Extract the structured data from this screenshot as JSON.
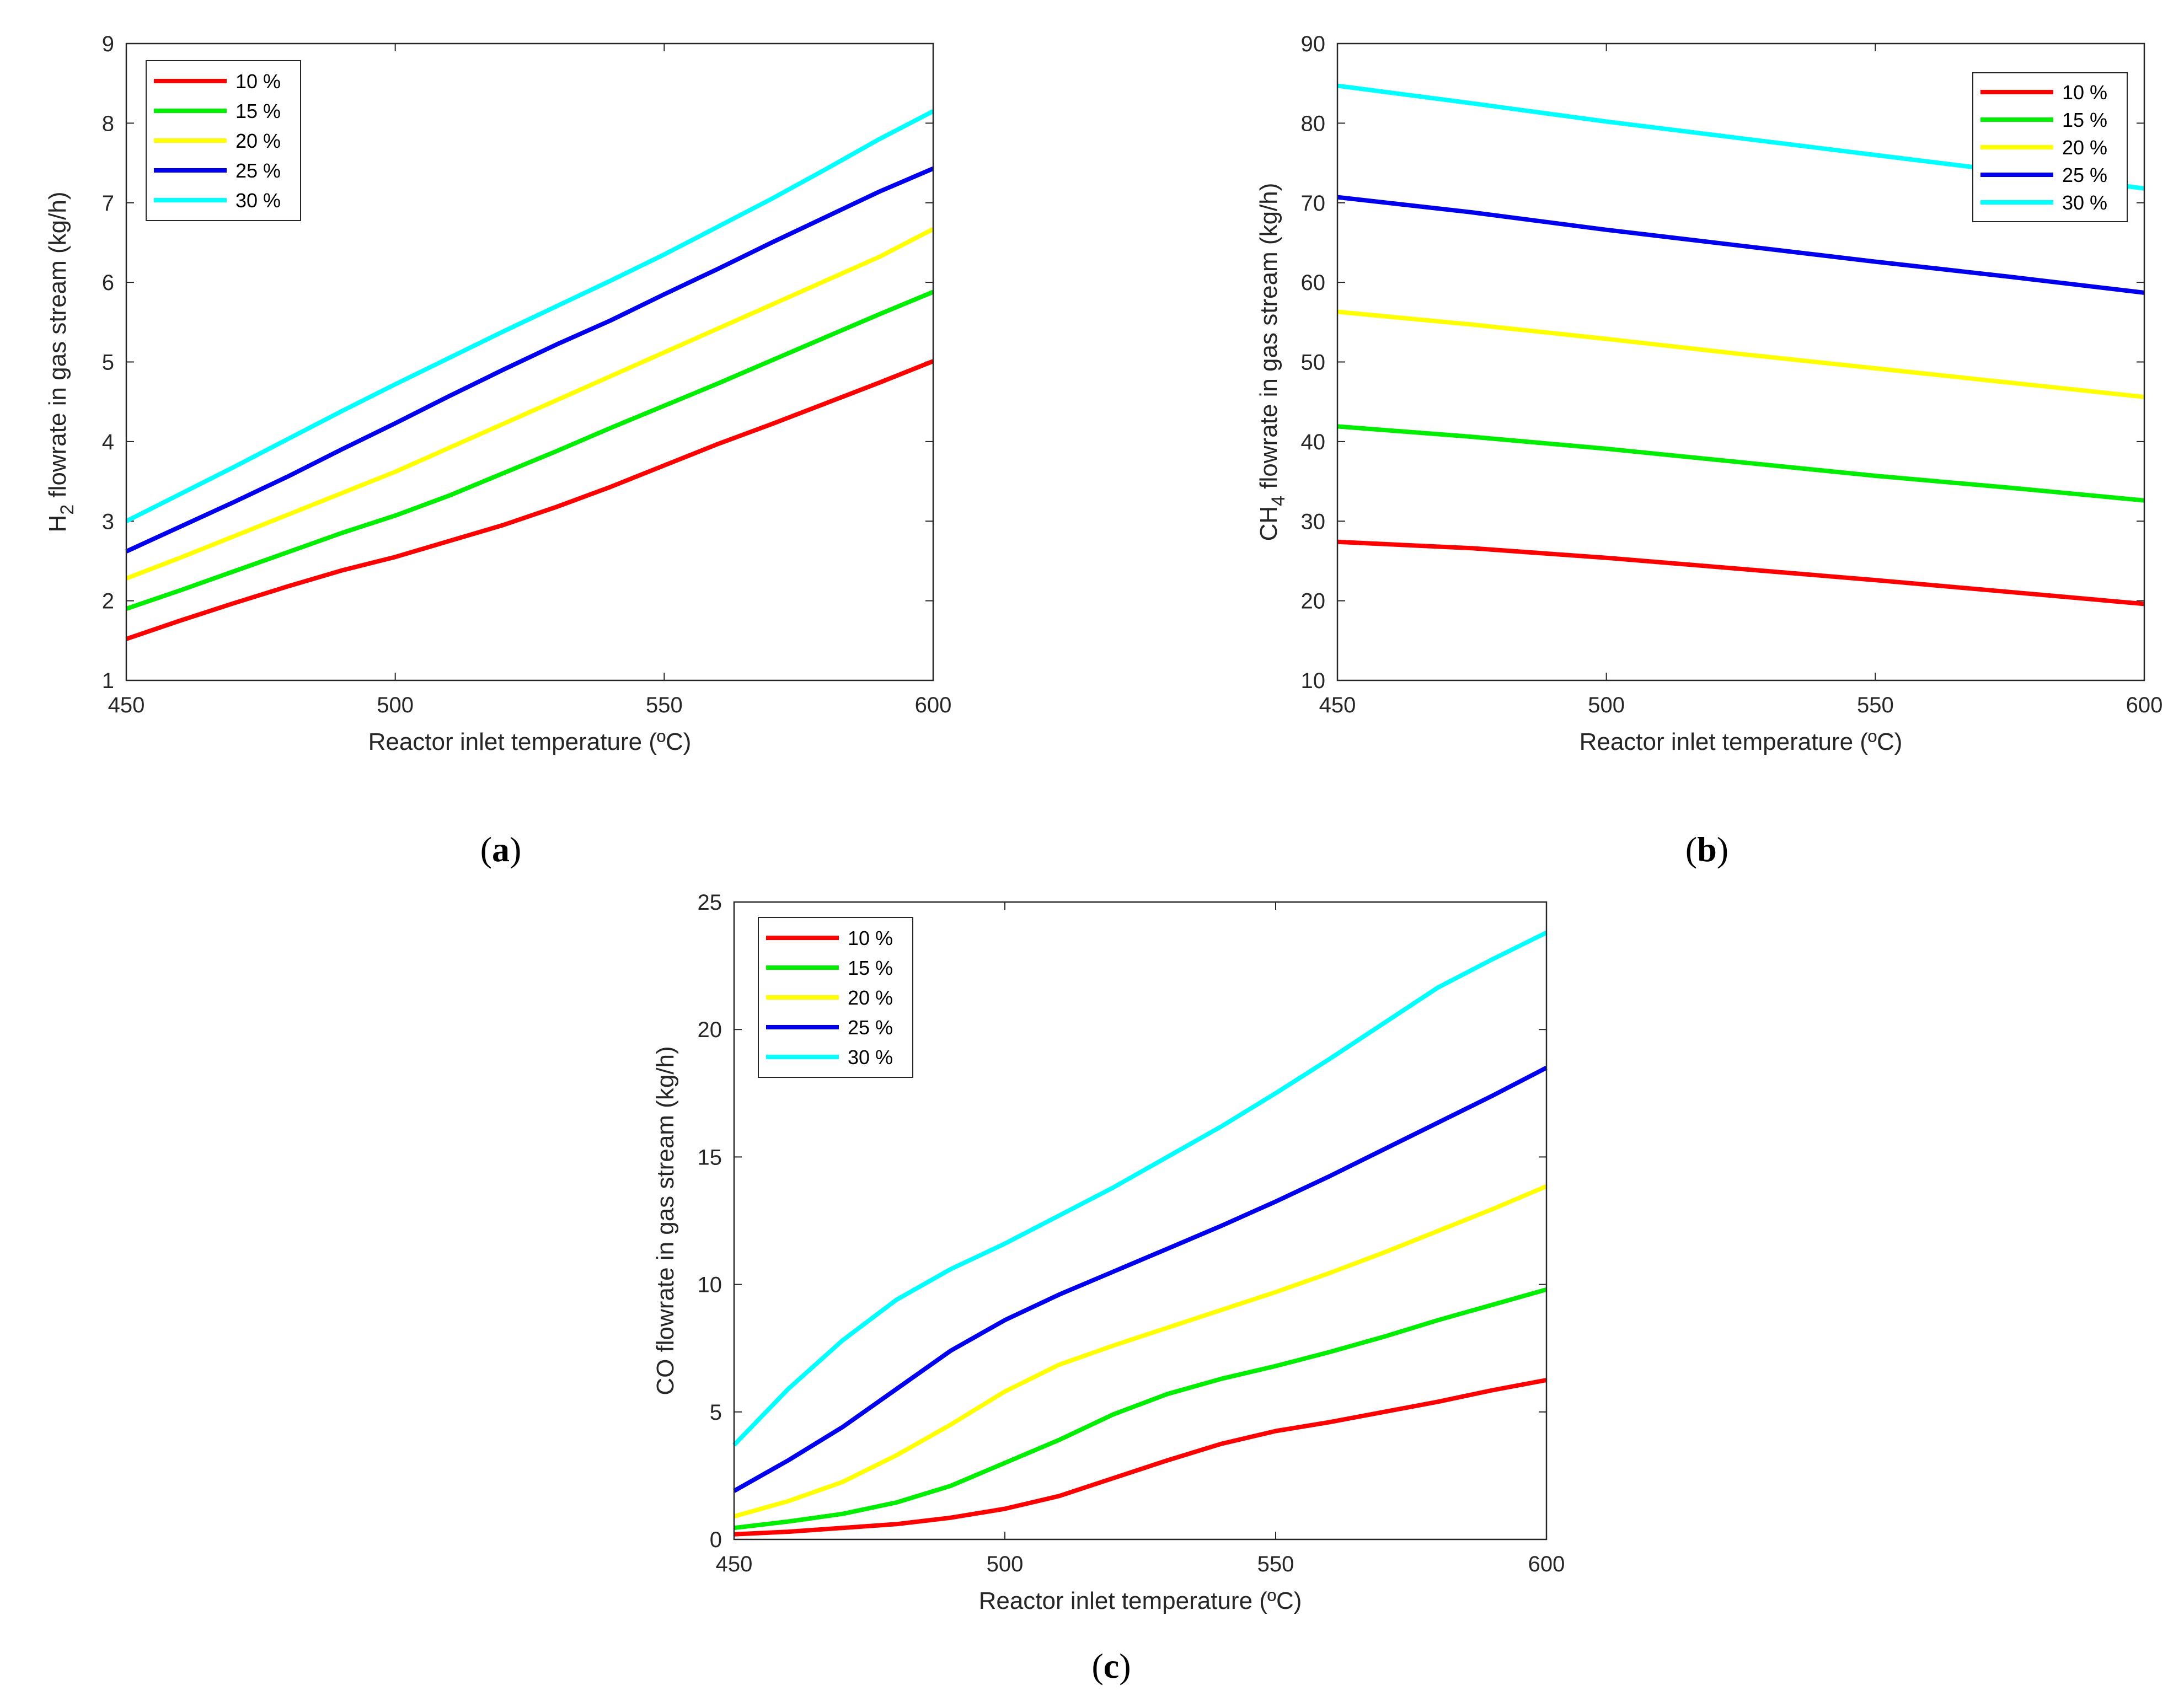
{
  "chart_data": [
    {
      "panel": "a",
      "type": "line",
      "xlabel": "Reactor inlet temperature (ºC)",
      "ylabel_main": "H",
      "ylabel_sub": "2",
      "ylabel_rest": " flowrate in gas stream (kg/h)",
      "xlim": [
        450,
        600
      ],
      "ylim": [
        1,
        9
      ],
      "xticks": [
        "450",
        "500",
        "550",
        "600"
      ],
      "yticks": [
        "1",
        "2",
        "3",
        "4",
        "5",
        "6",
        "7",
        "8",
        "9"
      ],
      "legend_position": "top-left",
      "x": [
        450,
        460,
        470,
        480,
        490,
        500,
        510,
        520,
        530,
        540,
        550,
        560,
        570,
        580,
        590,
        600
      ],
      "series": [
        {
          "name": "10 %",
          "color": "#ff0000",
          "values": [
            1.52,
            1.75,
            1.97,
            2.18,
            2.38,
            2.55,
            2.75,
            2.95,
            3.18,
            3.43,
            3.7,
            3.97,
            4.22,
            4.48,
            4.74,
            5.01
          ]
        },
        {
          "name": "15 %",
          "color": "#00ee00",
          "values": [
            1.9,
            2.13,
            2.37,
            2.61,
            2.85,
            3.07,
            3.32,
            3.6,
            3.88,
            4.17,
            4.45,
            4.73,
            5.02,
            5.31,
            5.6,
            5.88
          ]
        },
        {
          "name": "20 %",
          "color": "#ffff00",
          "values": [
            2.28,
            2.54,
            2.81,
            3.08,
            3.35,
            3.62,
            3.92,
            4.22,
            4.52,
            4.82,
            5.12,
            5.42,
            5.72,
            6.02,
            6.32,
            6.67
          ]
        },
        {
          "name": "25 %",
          "color": "#0000ee",
          "values": [
            2.62,
            2.93,
            3.24,
            3.56,
            3.9,
            4.23,
            4.57,
            4.9,
            5.22,
            5.52,
            5.85,
            6.17,
            6.5,
            6.82,
            7.14,
            7.43
          ]
        },
        {
          "name": "30 %",
          "color": "#00ffff",
          "values": [
            3.0,
            3.34,
            3.68,
            4.03,
            4.38,
            4.72,
            5.05,
            5.38,
            5.7,
            6.02,
            6.35,
            6.7,
            7.05,
            7.42,
            7.8,
            8.15
          ]
        }
      ]
    },
    {
      "panel": "b",
      "type": "line",
      "xlabel": "Reactor inlet temperature (ºC)",
      "ylabel_main": "CH",
      "ylabel_sub": "4",
      "ylabel_rest": " flowrate in gas stream (kg/h)",
      "xlim": [
        450,
        600
      ],
      "ylim": [
        10,
        90
      ],
      "xticks": [
        "450",
        "500",
        "550",
        "600"
      ],
      "yticks": [
        "10",
        "20",
        "30",
        "40",
        "50",
        "60",
        "70",
        "80",
        "90"
      ],
      "legend_position": "top-right",
      "x": [
        450,
        475,
        500,
        525,
        550,
        575,
        600
      ],
      "series": [
        {
          "name": "10 %",
          "color": "#ff0000",
          "values": [
            27.4,
            26.6,
            25.4,
            24.0,
            22.6,
            21.1,
            19.6
          ]
        },
        {
          "name": "15 %",
          "color": "#00ee00",
          "values": [
            41.9,
            40.6,
            39.1,
            37.4,
            35.7,
            34.2,
            32.6
          ]
        },
        {
          "name": "20 %",
          "color": "#ffff00",
          "values": [
            56.3,
            54.7,
            52.9,
            51.0,
            49.2,
            47.4,
            45.6
          ]
        },
        {
          "name": "25 %",
          "color": "#0000ee",
          "values": [
            70.7,
            68.8,
            66.6,
            64.6,
            62.6,
            60.7,
            58.7
          ]
        },
        {
          "name": "30 %",
          "color": "#00ffff",
          "values": [
            84.7,
            82.5,
            80.2,
            78.1,
            76.0,
            73.9,
            71.8
          ]
        }
      ]
    },
    {
      "panel": "c",
      "type": "line",
      "xlabel": "Reactor inlet temperature (ºC)",
      "ylabel_main": "CO flowrate in gas stream (kg/h)",
      "ylabel_sub": "",
      "ylabel_rest": "",
      "xlim": [
        450,
        600
      ],
      "ylim": [
        0,
        25
      ],
      "xticks": [
        "450",
        "500",
        "550",
        "600"
      ],
      "yticks": [
        "0",
        "5",
        "10",
        "15",
        "20",
        "25"
      ],
      "legend_position": "top-left",
      "x": [
        450,
        460,
        470,
        480,
        490,
        500,
        510,
        520,
        530,
        540,
        550,
        560,
        570,
        580,
        590,
        600
      ],
      "series": [
        {
          "name": "10 %",
          "color": "#ff0000",
          "values": [
            0.2,
            0.3,
            0.45,
            0.6,
            0.85,
            1.2,
            1.7,
            2.4,
            3.1,
            3.75,
            4.25,
            4.6,
            5.0,
            5.4,
            5.85,
            6.25
          ]
        },
        {
          "name": "15 %",
          "color": "#00ee00",
          "values": [
            0.45,
            0.7,
            1.0,
            1.45,
            2.1,
            3.0,
            3.9,
            4.9,
            5.7,
            6.3,
            6.8,
            7.35,
            7.95,
            8.6,
            9.2,
            9.8
          ]
        },
        {
          "name": "20 %",
          "color": "#ffff00",
          "values": [
            0.9,
            1.5,
            2.25,
            3.3,
            4.5,
            5.8,
            6.85,
            7.6,
            8.3,
            9.0,
            9.7,
            10.45,
            11.25,
            12.1,
            12.95,
            13.85
          ]
        },
        {
          "name": "25 %",
          "color": "#0000ee",
          "values": [
            1.9,
            3.1,
            4.4,
            5.9,
            7.4,
            8.6,
            9.6,
            10.5,
            11.4,
            12.3,
            13.25,
            14.25,
            15.3,
            16.35,
            17.4,
            18.5
          ]
        },
        {
          "name": "30 %",
          "color": "#00ffff",
          "values": [
            3.7,
            5.9,
            7.8,
            9.4,
            10.6,
            11.6,
            12.7,
            13.8,
            15.0,
            16.2,
            17.5,
            18.85,
            20.25,
            21.65,
            22.75,
            23.8
          ]
        }
      ]
    }
  ],
  "captions": {
    "a": {
      "open": "(",
      "letter": "a",
      "close": ")"
    },
    "b": {
      "open": "(",
      "letter": "b",
      "close": ")"
    },
    "c": {
      "open": "(",
      "letter": "c",
      "close": ")"
    }
  }
}
